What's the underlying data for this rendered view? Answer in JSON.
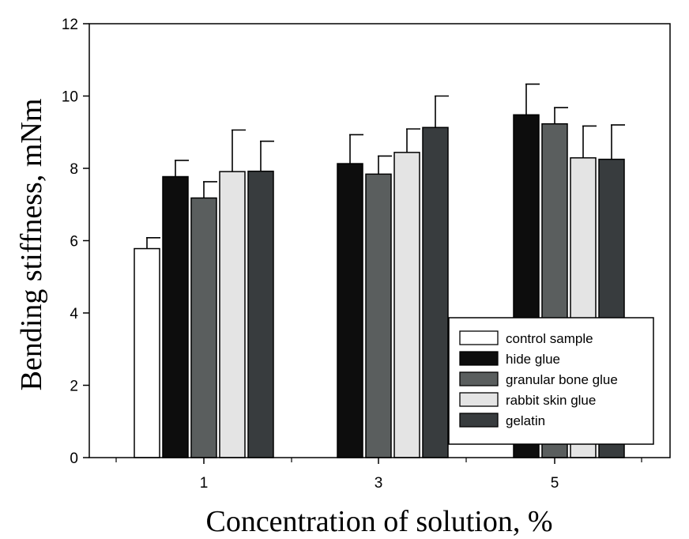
{
  "chart_data": {
    "type": "bar",
    "xlabel": "Concentration of solution, %",
    "ylabel": "Bending stiffness, mNm",
    "ylim": [
      0,
      12
    ],
    "yticks": [
      0,
      2,
      4,
      6,
      8,
      10,
      12
    ],
    "categories": [
      "1",
      "3",
      "5"
    ],
    "grid": false,
    "legend_position": "bottom-right",
    "series": [
      {
        "name": "control sample",
        "color": "#ffffff",
        "values": [
          5.78,
          null,
          null
        ],
        "errors": [
          0.3,
          null,
          null
        ]
      },
      {
        "name": "hide glue",
        "color": "#0d0d0d",
        "values": [
          7.77,
          8.13,
          9.48
        ],
        "errors": [
          0.45,
          0.8,
          0.85
        ]
      },
      {
        "name": "granular bone glue",
        "color": "#5a5e5e",
        "values": [
          7.18,
          7.84,
          9.23
        ],
        "errors": [
          0.45,
          0.5,
          0.45
        ]
      },
      {
        "name": "rabbit skin glue",
        "color": "#e4e4e4",
        "values": [
          7.91,
          8.44,
          8.29
        ],
        "errors": [
          1.15,
          0.65,
          0.88
        ]
      },
      {
        "name": "gelatin",
        "color": "#383c3e",
        "values": [
          7.92,
          9.13,
          8.25
        ],
        "errors": [
          0.83,
          0.87,
          0.95
        ]
      }
    ]
  }
}
